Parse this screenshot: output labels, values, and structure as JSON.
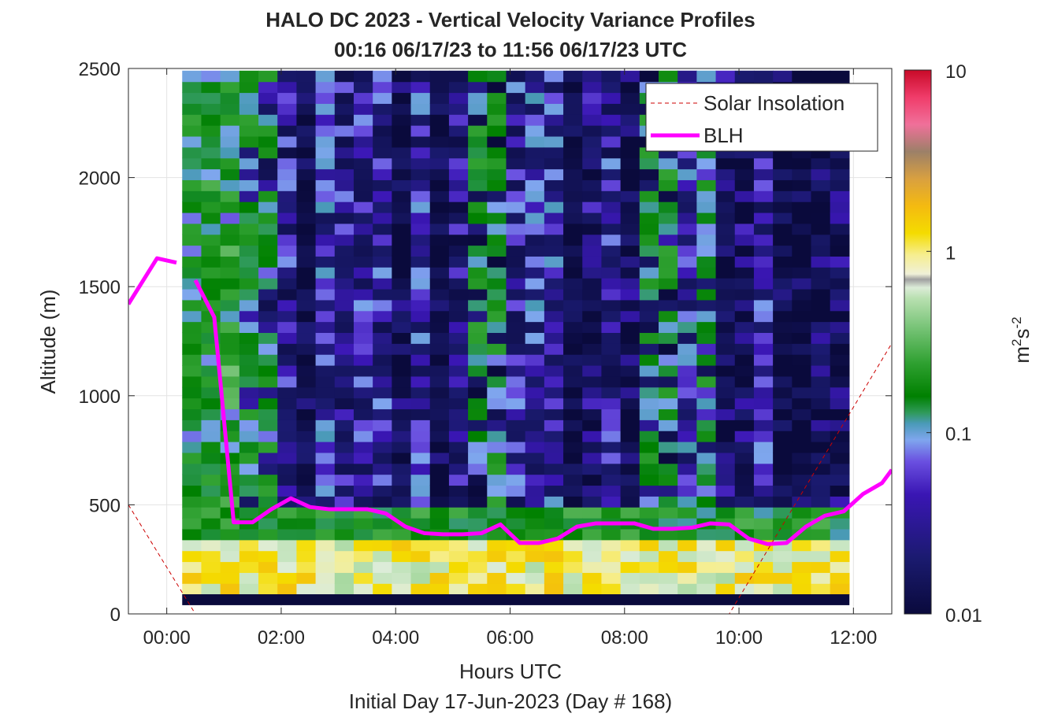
{
  "chart_data": {
    "type": "heatmap",
    "title": "HALO DC 2023 - Vertical Velocity Variance Profiles",
    "subtitle": "00:16 06/17/23 to 11:56 06/17/23  UTC",
    "xlabel": "Hours UTC",
    "ylabel": "Altitude (m)",
    "footer": "Initial Day 17-Jun-2023 (Day # 168)",
    "xlim": [
      -0.67,
      12.67
    ],
    "ylim": [
      0,
      2500
    ],
    "x_ticks": [
      {
        "value": 0,
        "label": "00:00"
      },
      {
        "value": 2,
        "label": "02:00"
      },
      {
        "value": 4,
        "label": "04:00"
      },
      {
        "value": 6,
        "label": "06:00"
      },
      {
        "value": 8,
        "label": "08:00"
      },
      {
        "value": 10,
        "label": "10:00"
      },
      {
        "value": 12,
        "label": "12:00"
      }
    ],
    "y_ticks": [
      {
        "value": 0,
        "label": "0"
      },
      {
        "value": 500,
        "label": "500"
      },
      {
        "value": 1000,
        "label": "1000"
      },
      {
        "value": 1500,
        "label": "1500"
      },
      {
        "value": 2000,
        "label": "2000"
      },
      {
        "value": 2500,
        "label": "2500"
      }
    ],
    "grid": true,
    "legend_position": "top-right",
    "colorbar": {
      "label_base": "m",
      "label_sup1": "2",
      "label_mid": "s",
      "label_sup2": "-2",
      "scale": "log",
      "range": [
        0.01,
        10
      ],
      "ticks": [
        {
          "value": 0.01,
          "label": "0.01"
        },
        {
          "value": 0.1,
          "label": "0.1"
        },
        {
          "value": 1,
          "label": "1"
        },
        {
          "value": 10,
          "label": "10"
        }
      ]
    },
    "heatmap": {
      "x_start": 0.27,
      "x_end": 11.93,
      "y_start": 90,
      "y_end": 2500,
      "bin_hours": 0.333,
      "bin_m": 50,
      "value_unit": "log10 of m2 s-2",
      "surface_layer_typical": 0.4,
      "boundary_layer_typical": 0.08,
      "free_troposphere_typical": 0.02
    },
    "series": [
      {
        "name": "Solar Insolation",
        "color": "#cc0000",
        "style": "dashed",
        "x": [
          -0.67,
          0.5,
          9.83,
          12.67
        ],
        "y": [
          500,
          0,
          0,
          1240
        ]
      },
      {
        "name": "BLH",
        "color": "#ff00ff",
        "style": "solid",
        "segments": [
          {
            "x": [
              -0.67,
              -0.17,
              0.17
            ],
            "y": [
              1420,
              1630,
              1610
            ]
          },
          {
            "x": [
              0.5,
              0.83,
              1.17,
              1.5,
              1.83,
              2.17,
              2.5,
              2.83,
              3.17,
              3.5,
              3.83,
              4.17,
              4.5,
              4.83,
              5.17,
              5.5,
              5.83,
              6.17,
              6.5,
              6.83,
              7.17,
              7.5,
              7.83,
              8.17,
              8.5,
              8.83,
              9.17,
              9.5,
              9.83,
              10.17,
              10.5,
              10.83,
              11.17,
              11.5,
              11.83,
              12.17,
              12.5,
              12.67
            ],
            "y": [
              1530,
              1360,
              420,
              420,
              480,
              530,
              490,
              480,
              480,
              480,
              460,
              400,
              370,
              365,
              365,
              370,
              410,
              325,
              325,
              345,
              400,
              415,
              415,
              415,
              390,
              390,
              395,
              415,
              410,
              345,
              320,
              325,
              400,
              450,
              470,
              550,
              600,
              660
            ]
          }
        ]
      }
    ]
  }
}
